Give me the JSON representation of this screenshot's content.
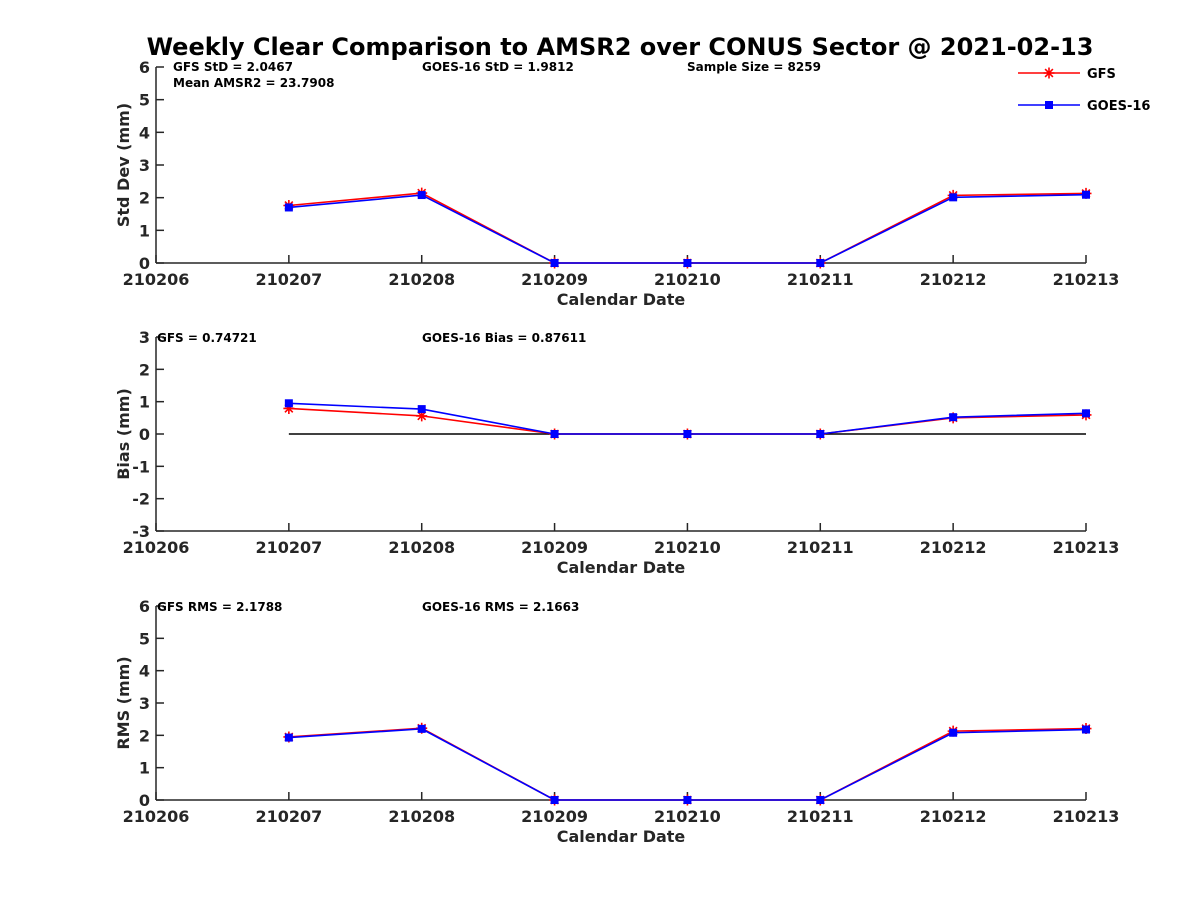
{
  "figure_title": "Weekly Clear Comparison to AMSR2 over CONUS Sector @ 2021-02-13",
  "legend": [
    {
      "label": "GFS",
      "color": "#ff0000",
      "marker": "star"
    },
    {
      "label": "GOES-16",
      "color": "#0000ff",
      "marker": "square"
    }
  ],
  "chart_data": [
    {
      "type": "line",
      "ylabel": "Std Dev (mm)",
      "xlabel": "Calendar Date",
      "x": [
        "210206",
        "210207",
        "210208",
        "210209",
        "210210",
        "210211",
        "210212",
        "210213"
      ],
      "ylim": [
        0,
        6
      ],
      "yticks": [
        "0",
        "1",
        "2",
        "3",
        "4",
        "5",
        "6"
      ],
      "annotations": [
        "GFS StD = 2.0467",
        "Mean AMSR2 = 23.7908",
        "GOES-16 StD = 1.9812",
        "Sample Size = 8259"
      ],
      "reference_zero_line": false,
      "series": [
        {
          "name": "GFS",
          "color": "#ff0000",
          "values": [
            null,
            1.76,
            2.14,
            0,
            0,
            0,
            2.07,
            2.13
          ]
        },
        {
          "name": "GOES-16",
          "color": "#0000ff",
          "values": [
            null,
            1.7,
            2.08,
            0,
            0,
            0,
            2.01,
            2.09
          ]
        }
      ]
    },
    {
      "type": "line",
      "ylabel": "Bias (mm)",
      "xlabel": "Calendar Date",
      "x": [
        "210206",
        "210207",
        "210208",
        "210209",
        "210210",
        "210211",
        "210212",
        "210213"
      ],
      "ylim": [
        -3,
        3
      ],
      "yticks": [
        "-3",
        "-2",
        "-1",
        "0",
        "1",
        "2",
        "3"
      ],
      "annotations": [
        "GFS = 0.74721",
        "GOES-16 Bias  = 0.87611"
      ],
      "reference_zero_line": true,
      "series": [
        {
          "name": "GFS",
          "color": "#ff0000",
          "values": [
            null,
            0.79,
            0.56,
            0,
            0,
            0,
            0.5,
            0.59
          ]
        },
        {
          "name": "GOES-16",
          "color": "#0000ff",
          "values": [
            null,
            0.95,
            0.77,
            0,
            0,
            0,
            0.52,
            0.64
          ]
        }
      ]
    },
    {
      "type": "line",
      "ylabel": "RMS (mm)",
      "xlabel": "Calendar Date",
      "x": [
        "210206",
        "210207",
        "210208",
        "210209",
        "210210",
        "210211",
        "210212",
        "210213"
      ],
      "ylim": [
        0,
        6
      ],
      "yticks": [
        "0",
        "1",
        "2",
        "3",
        "4",
        "5",
        "6"
      ],
      "annotations": [
        "GFS RMS = 2.1788",
        "GOES-16 RMS = 2.1663"
      ],
      "reference_zero_line": false,
      "series": [
        {
          "name": "GFS",
          "color": "#ff0000",
          "values": [
            null,
            1.95,
            2.22,
            0,
            0,
            0,
            2.13,
            2.21
          ]
        },
        {
          "name": "GOES-16",
          "color": "#0000ff",
          "values": [
            null,
            1.93,
            2.2,
            0,
            0,
            0,
            2.08,
            2.18
          ]
        }
      ]
    }
  ]
}
